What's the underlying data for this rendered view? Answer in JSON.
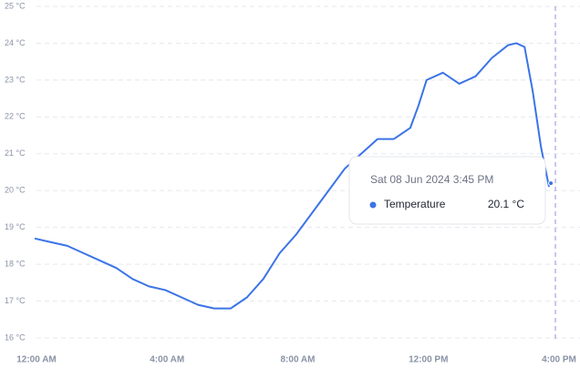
{
  "chart_data": {
    "type": "line",
    "x": [
      0,
      0.5,
      1,
      1.5,
      2,
      2.5,
      3,
      3.5,
      4,
      4.5,
      5,
      5.5,
      6,
      6.5,
      7,
      7.5,
      8,
      8.5,
      9,
      9.5,
      10,
      10.5,
      11,
      11.5,
      11.75,
      12,
      12.5,
      13,
      13.5,
      14,
      14.5,
      14.75,
      15,
      15.25,
      15.5,
      15.75
    ],
    "series": [
      {
        "name": "Temperature",
        "color": "#3b74e6",
        "values": [
          18.7,
          18.6,
          18.5,
          18.3,
          18.1,
          17.9,
          17.6,
          17.4,
          17.3,
          17.1,
          16.9,
          16.8,
          16.8,
          17.1,
          17.6,
          18.3,
          18.8,
          19.4,
          20.0,
          20.6,
          21.0,
          21.4,
          21.4,
          21.7,
          22.3,
          23.0,
          23.2,
          22.9,
          23.1,
          23.6,
          23.95,
          24.0,
          23.9,
          22.7,
          21.2,
          20.1
        ]
      }
    ],
    "xlim": [
      0,
      16
    ],
    "xticks": [
      {
        "value": 0,
        "label": "12:00 AM"
      },
      {
        "value": 4,
        "label": "4:00 AM"
      },
      {
        "value": 8,
        "label": "8:00 AM"
      },
      {
        "value": 12,
        "label": "12:00 PM"
      },
      {
        "value": 16,
        "label": "4:00 PM"
      }
    ],
    "ylim": [
      16,
      25
    ],
    "yticks": [
      {
        "value": 16,
        "label": "16 °C"
      },
      {
        "value": 17,
        "label": "17 °C"
      },
      {
        "value": 18,
        "label": "18 °C"
      },
      {
        "value": 19,
        "label": "19 °C"
      },
      {
        "value": 20,
        "label": "20 °C"
      },
      {
        "value": 21,
        "label": "21 °C"
      },
      {
        "value": 22,
        "label": "22 °C"
      },
      {
        "value": 23,
        "label": "23 °C"
      },
      {
        "value": 24,
        "label": "24 °C"
      },
      {
        "value": 25,
        "label": "25 °C"
      }
    ],
    "grid": true,
    "tooltip": {
      "title": "Sat 08 Jun 2024 3:45 PM",
      "value_label": "20.1 °C"
    }
  }
}
